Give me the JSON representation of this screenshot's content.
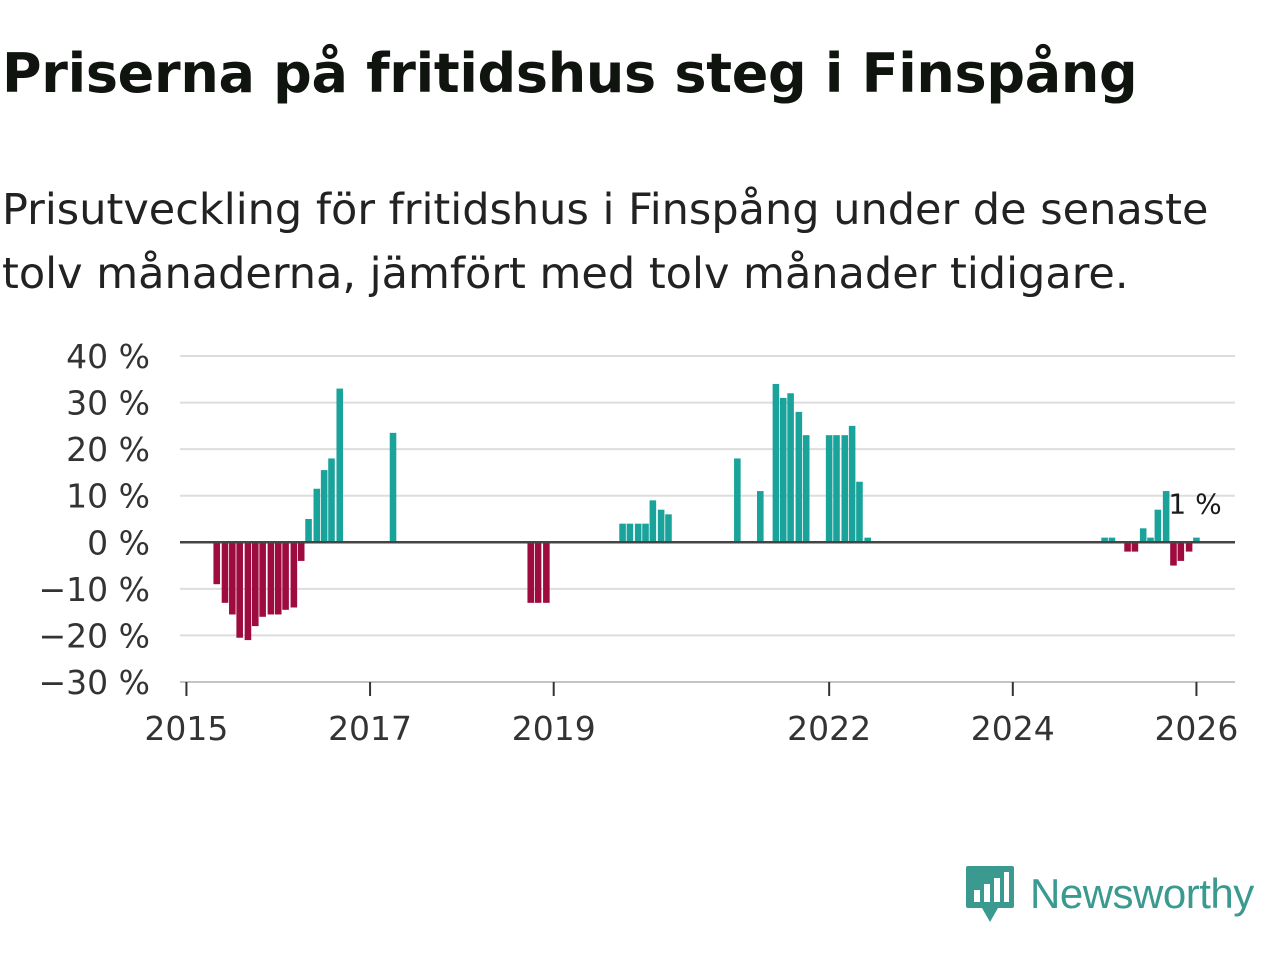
{
  "title": "Priserna på fritidshus steg i Finspång",
  "subtitle": "Prisutveckling för fritidshus i Finspång under de senaste tolv månaderna, jämfört med tolv månader tidigare.",
  "brand": {
    "name": "Newsworthy",
    "color": "#3a9a8f",
    "icon": "bar-chart-speech-bubble-icon"
  },
  "colors": {
    "positive": "#1aa39a",
    "negative": "#9e0b3f",
    "zero_line": "#444444",
    "grid": "#dddddd"
  },
  "chart_data": {
    "type": "bar",
    "title": "Priserna på fritidshus steg i Finspång",
    "xlabel": "",
    "ylabel": "",
    "xlim": [
      2014.93,
      2026.42
    ],
    "ylim": [
      -30,
      40
    ],
    "y_ticks": [
      40,
      30,
      20,
      10,
      0,
      -10,
      -20,
      -30
    ],
    "y_tick_labels": [
      "40 %",
      "30 %",
      "20 %",
      "10 %",
      "0 %",
      "−10 %",
      "−20 %",
      "−30 %"
    ],
    "x_ticks": [
      2015,
      2017,
      2019,
      2022,
      2024,
      2026
    ],
    "x_tick_labels": [
      "2015",
      "2017",
      "2019",
      "2022",
      "2024",
      "2026"
    ],
    "annotation": "1 %",
    "series": [
      {
        "name": "Prisutveckling",
        "points": [
          {
            "x": 2015.33,
            "y": -9
          },
          {
            "x": 2015.42,
            "y": -13
          },
          {
            "x": 2015.5,
            "y": -15.5
          },
          {
            "x": 2015.58,
            "y": -20.5
          },
          {
            "x": 2015.67,
            "y": -21
          },
          {
            "x": 2015.75,
            "y": -18
          },
          {
            "x": 2015.83,
            "y": -16
          },
          {
            "x": 2015.92,
            "y": -15.5
          },
          {
            "x": 2016.0,
            "y": -15.5
          },
          {
            "x": 2016.08,
            "y": -14.5
          },
          {
            "x": 2016.17,
            "y": -14
          },
          {
            "x": 2016.25,
            "y": -4
          },
          {
            "x": 2016.33,
            "y": 5
          },
          {
            "x": 2016.42,
            "y": 11.5
          },
          {
            "x": 2016.5,
            "y": 15.5
          },
          {
            "x": 2016.58,
            "y": 18
          },
          {
            "x": 2016.67,
            "y": 33
          },
          {
            "x": 2017.25,
            "y": 23.5
          },
          {
            "x": 2018.75,
            "y": -13
          },
          {
            "x": 2018.83,
            "y": -13
          },
          {
            "x": 2018.92,
            "y": -13
          },
          {
            "x": 2019.75,
            "y": 4
          },
          {
            "x": 2019.83,
            "y": 4
          },
          {
            "x": 2019.92,
            "y": 4
          },
          {
            "x": 2020.0,
            "y": 4
          },
          {
            "x": 2020.08,
            "y": 9
          },
          {
            "x": 2020.17,
            "y": 7
          },
          {
            "x": 2020.25,
            "y": 6
          },
          {
            "x": 2021.0,
            "y": 18
          },
          {
            "x": 2021.25,
            "y": 11
          },
          {
            "x": 2021.42,
            "y": 34
          },
          {
            "x": 2021.5,
            "y": 31
          },
          {
            "x": 2021.58,
            "y": 32
          },
          {
            "x": 2021.67,
            "y": 28
          },
          {
            "x": 2021.75,
            "y": 23
          },
          {
            "x": 2022.0,
            "y": 23
          },
          {
            "x": 2022.08,
            "y": 23
          },
          {
            "x": 2022.17,
            "y": 23
          },
          {
            "x": 2022.25,
            "y": 25
          },
          {
            "x": 2022.33,
            "y": 13
          },
          {
            "x": 2022.42,
            "y": 1
          },
          {
            "x": 2025.0,
            "y": 1
          },
          {
            "x": 2025.08,
            "y": 1
          },
          {
            "x": 2025.25,
            "y": -2
          },
          {
            "x": 2025.33,
            "y": -2
          },
          {
            "x": 2025.42,
            "y": 3
          },
          {
            "x": 2025.5,
            "y": 1
          },
          {
            "x": 2025.58,
            "y": 7
          },
          {
            "x": 2025.67,
            "y": 11
          },
          {
            "x": 2025.75,
            "y": -5
          },
          {
            "x": 2025.83,
            "y": -4
          },
          {
            "x": 2025.92,
            "y": -2
          },
          {
            "x": 2026.0,
            "y": 1
          }
        ]
      }
    ]
  }
}
